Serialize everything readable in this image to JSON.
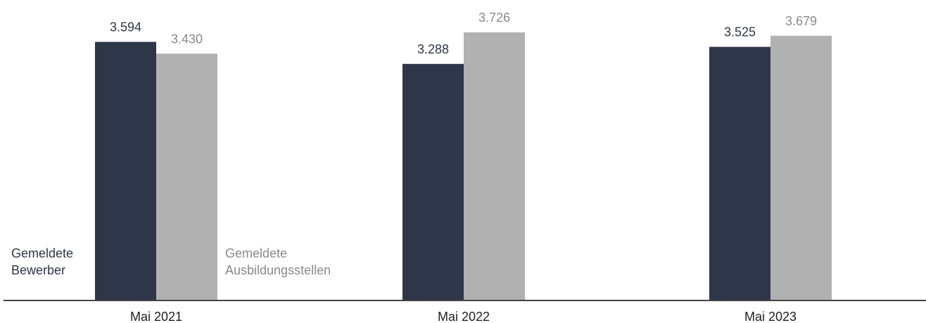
{
  "chart_data": {
    "type": "bar",
    "title": "",
    "xlabel": "",
    "ylabel": "",
    "categories": [
      "Mai 2021",
      "Mai 2022",
      "Mai 2023"
    ],
    "ylim": [
      0,
      4000
    ],
    "grid": false,
    "legend_placement": "inline-bottom-left",
    "series": [
      {
        "name": "Gemeldete Bewerber",
        "name_lines": [
          "Gemeldete",
          "Bewerber"
        ],
        "values": [
          3594,
          3288,
          3525
        ],
        "labels": [
          "3.594",
          "3.288",
          "3.525"
        ],
        "color": "#2e3649",
        "label_color": "#2e3649"
      },
      {
        "name": "Gemeldete Ausbildungsstellen",
        "name_lines": [
          "Gemeldete",
          "Ausbildungsstellen"
        ],
        "values": [
          3430,
          3726,
          3679
        ],
        "labels": [
          "3.430",
          "3.726",
          "3.679"
        ],
        "color": "#b1b1b1",
        "label_color": "#8a8a8a"
      }
    ]
  },
  "colors": {
    "axis": "#444444",
    "tick_label": "#222222",
    "legend_bewerber": "#2e3649",
    "legend_stellen": "#8a8a8a"
  }
}
